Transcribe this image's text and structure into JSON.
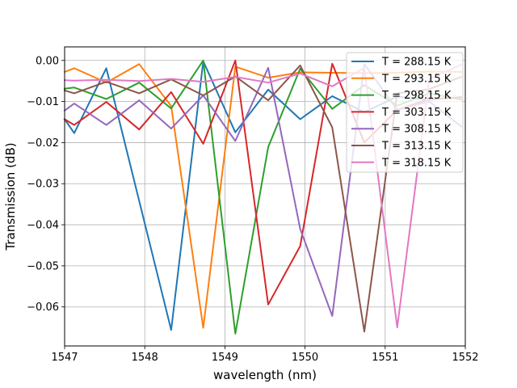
{
  "chart_data": {
    "type": "line",
    "xlabel": "wavelength (nm)",
    "ylabel": "Transmission (dB)",
    "xlim": [
      1547,
      1552
    ],
    "ylim": [
      -0.0695,
      0.0033
    ],
    "xticks": [
      1547,
      1548,
      1549,
      1550,
      1551,
      1552
    ],
    "xtick_labels": [
      "1547",
      "1548",
      "1549",
      "1550",
      "1551",
      "1552"
    ],
    "yticks": [
      0.0,
      -0.01,
      -0.02,
      -0.03,
      -0.04,
      -0.05,
      -0.06
    ],
    "ytick_labels": [
      "0.00",
      "−0.01",
      "−0.02",
      "−0.03",
      "−0.04",
      "−0.05",
      "−0.06"
    ],
    "grid": true,
    "legend_position": "top-right",
    "series": [
      {
        "name": "T = 288.15 K",
        "color": "#1f77b4",
        "x": [
          1547.0,
          1547.12,
          1547.52,
          1548.33,
          1548.73,
          1549.13,
          1549.54,
          1549.94,
          1550.34,
          1550.74,
          1551.15,
          1551.55,
          1551.95
        ],
        "y": [
          -0.0143,
          -0.0177,
          -0.0019,
          -0.0656,
          -0.0002,
          -0.0175,
          -0.0071,
          -0.0143,
          -0.0087,
          -0.0126,
          -0.0088,
          -0.0096,
          -0.0089
        ]
      },
      {
        "name": "T = 293.15 K",
        "color": "#ff7f0e",
        "x": [
          1547.0,
          1547.12,
          1547.52,
          1547.93,
          1548.33,
          1548.73,
          1549.13,
          1549.54,
          1549.94,
          1550.34,
          1550.74,
          1551.15,
          1551.55,
          1551.95
        ],
        "y": [
          -0.0028,
          -0.0019,
          -0.0054,
          -0.0009,
          -0.0111,
          -0.0651,
          -0.0015,
          -0.0042,
          -0.0029,
          -0.003,
          -0.0031,
          -0.003,
          -0.0027,
          -0.0028
        ]
      },
      {
        "name": "T = 298.15 K",
        "color": "#2ca02c",
        "x": [
          1547.0,
          1547.12,
          1547.52,
          1547.93,
          1548.33,
          1548.73,
          1549.13,
          1549.54,
          1549.94,
          1550.34,
          1550.74,
          1551.15,
          1551.55,
          1551.95
        ],
        "y": [
          -0.0069,
          -0.0066,
          -0.0094,
          -0.0054,
          -0.0117,
          0.0,
          -0.0665,
          -0.0211,
          -0.002,
          -0.0118,
          -0.006,
          -0.011,
          -0.008,
          -0.0095
        ]
      },
      {
        "name": "T = 303.15 K",
        "color": "#d62728",
        "x": [
          1547.0,
          1547.12,
          1547.52,
          1547.93,
          1548.33,
          1548.73,
          1549.13,
          1549.54,
          1549.94,
          1550.34,
          1550.74,
          1551.15,
          1551.55,
          1551.95
        ],
        "y": [
          -0.0143,
          -0.0157,
          -0.0101,
          -0.0168,
          -0.0077,
          -0.0203,
          0.0,
          -0.0594,
          -0.0452,
          -0.0008,
          -0.02,
          -0.012,
          -0.0094,
          -0.009
        ]
      },
      {
        "name": "T = 308.15 K",
        "color": "#9467bd",
        "x": [
          1547.0,
          1547.12,
          1547.52,
          1547.93,
          1548.33,
          1548.73,
          1549.13,
          1549.54,
          1549.94,
          1550.34,
          1550.74,
          1551.15,
          1551.55,
          1551.95
        ],
        "y": [
          -0.0122,
          -0.0105,
          -0.0157,
          -0.0097,
          -0.0166,
          -0.0085,
          -0.0196,
          -0.0018,
          -0.041,
          -0.0622,
          -0.0009,
          -0.012,
          -0.01,
          -0.0161
        ]
      },
      {
        "name": "T = 313.15 K",
        "color": "#8c564b",
        "x": [
          1547.0,
          1547.12,
          1547.52,
          1547.93,
          1548.33,
          1548.73,
          1549.13,
          1549.54,
          1549.94,
          1550.34,
          1550.74,
          1551.15,
          1551.55,
          1551.95
        ],
        "y": [
          -0.0073,
          -0.008,
          -0.0052,
          -0.008,
          -0.0046,
          -0.0085,
          -0.0039,
          -0.0097,
          -0.0012,
          -0.0163,
          -0.066,
          -0.008,
          -0.007,
          -0.004
        ]
      },
      {
        "name": "T = 318.15 K",
        "color": "#e377c2",
        "x": [
          1547.0,
          1547.12,
          1547.52,
          1547.93,
          1548.33,
          1548.73,
          1549.13,
          1549.54,
          1549.94,
          1550.34,
          1550.74,
          1551.15,
          1551.55,
          1551.95
        ],
        "y": [
          -0.0048,
          -0.0049,
          -0.0047,
          -0.005,
          -0.0045,
          -0.0052,
          -0.004,
          -0.0054,
          -0.0032,
          -0.0063,
          -0.0018,
          -0.065,
          -0.0045,
          -0.001
        ]
      }
    ]
  }
}
